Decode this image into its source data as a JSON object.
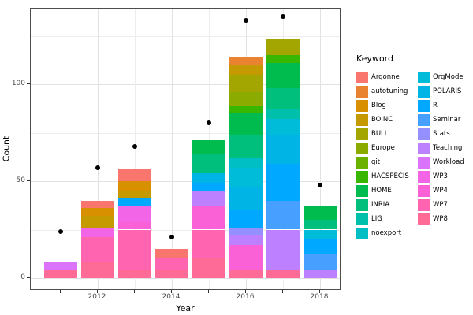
{
  "chart_data": {
    "type": "bar",
    "subtype": "stacked-bar-with-points",
    "title": "",
    "xlabel": "Year",
    "ylabel": "Count",
    "x_ticks_labeled": [
      2012,
      2014,
      2016,
      2018
    ],
    "x_ticks_all": [
      2011,
      2012,
      2013,
      2014,
      2015,
      2016,
      2017,
      2018
    ],
    "y_ticks": [
      0,
      50,
      100
    ],
    "y_minor_gridlines": [
      25,
      75,
      125
    ],
    "ylim": [
      0,
      139
    ],
    "grid": true,
    "legend_position": "right",
    "legend_title": "Keyword",
    "keywords": [
      {
        "name": "Argonne",
        "color": "#F8766D"
      },
      {
        "name": "autotuning",
        "color": "#EA8331"
      },
      {
        "name": "Blog",
        "color": "#D89000"
      },
      {
        "name": "BOINC",
        "color": "#C49A00"
      },
      {
        "name": "BULL",
        "color": "#A3A500"
      },
      {
        "name": "Europe",
        "color": "#8CAB00"
      },
      {
        "name": "git",
        "color": "#6BB100"
      },
      {
        "name": "HACSPECIS",
        "color": "#39B600"
      },
      {
        "name": "HOME",
        "color": "#00BB4E"
      },
      {
        "name": "INRIA",
        "color": "#00BF7D"
      },
      {
        "name": "LIG",
        "color": "#00C0AC"
      },
      {
        "name": "noexport",
        "color": "#00BFC4"
      },
      {
        "name": "OrgMode",
        "color": "#00BCD8"
      },
      {
        "name": "POLARIS",
        "color": "#00B4E6"
      },
      {
        "name": "R",
        "color": "#00A9FF"
      },
      {
        "name": "Seminar",
        "color": "#479FFF"
      },
      {
        "name": "Stats",
        "color": "#9590FF"
      },
      {
        "name": "Teaching",
        "color": "#BD80FF"
      },
      {
        "name": "Workload",
        "color": "#D974FB"
      },
      {
        "name": "WP3",
        "color": "#F265E6"
      },
      {
        "name": "WP4",
        "color": "#FB61D7"
      },
      {
        "name": "WP7",
        "color": "#FF64B0"
      },
      {
        "name": "WP8",
        "color": "#FF6B97"
      }
    ],
    "legend_columns": [
      12,
      11
    ],
    "bars": [
      {
        "year": 2011,
        "total": 8,
        "segments_top_to_bottom": [
          {
            "keyword": "Workload",
            "value": 4
          },
          {
            "keyword": "WP8",
            "value": 4
          }
        ]
      },
      {
        "year": 2012,
        "total": 40,
        "segments_top_to_bottom": [
          {
            "keyword": "Argonne",
            "value": 4
          },
          {
            "keyword": "Blog",
            "value": 4
          },
          {
            "keyword": "BOINC",
            "value": 6
          },
          {
            "keyword": "WP3",
            "value": 5
          },
          {
            "keyword": "WP7",
            "value": 13
          },
          {
            "keyword": "WP8",
            "value": 8
          }
        ]
      },
      {
        "year": 2013,
        "total": 56,
        "segments_top_to_bottom": [
          {
            "keyword": "Argonne",
            "value": 6
          },
          {
            "keyword": "Blog",
            "value": 5
          },
          {
            "keyword": "BOINC",
            "value": 4
          },
          {
            "keyword": "R",
            "value": 4
          },
          {
            "keyword": "WP3",
            "value": 8
          },
          {
            "keyword": "WP4",
            "value": 4
          },
          {
            "keyword": "WP7",
            "value": 21
          },
          {
            "keyword": "WP8",
            "value": 4
          }
        ]
      },
      {
        "year": 2014,
        "total": 15,
        "segments_top_to_bottom": [
          {
            "keyword": "Argonne",
            "value": 5
          },
          {
            "keyword": "WP7",
            "value": 6
          },
          {
            "keyword": "WP8",
            "value": 4
          }
        ]
      },
      {
        "year": 2015,
        "total": 71,
        "segments_top_to_bottom": [
          {
            "keyword": "HOME",
            "value": 7
          },
          {
            "keyword": "INRIA",
            "value": 10
          },
          {
            "keyword": "POLARIS",
            "value": 5
          },
          {
            "keyword": "R",
            "value": 4
          },
          {
            "keyword": "Teaching",
            "value": 8
          },
          {
            "keyword": "WP4",
            "value": 12
          },
          {
            "keyword": "WP7",
            "value": 15
          },
          {
            "keyword": "WP8",
            "value": 10
          }
        ]
      },
      {
        "year": 2016,
        "total": 114,
        "segments_top_to_bottom": [
          {
            "keyword": "autotuning",
            "value": 4
          },
          {
            "keyword": "BOINC",
            "value": 5
          },
          {
            "keyword": "BULL",
            "value": 9
          },
          {
            "keyword": "Europe",
            "value": 7
          },
          {
            "keyword": "HACSPECIS",
            "value": 4
          },
          {
            "keyword": "HOME",
            "value": 11
          },
          {
            "keyword": "INRIA",
            "value": 12
          },
          {
            "keyword": "noexport",
            "value": 5
          },
          {
            "keyword": "OrgMode",
            "value": 10
          },
          {
            "keyword": "POLARIS",
            "value": 12
          },
          {
            "keyword": "R",
            "value": 9
          },
          {
            "keyword": "Stats",
            "value": 4
          },
          {
            "keyword": "Teaching",
            "value": 5
          },
          {
            "keyword": "WP4",
            "value": 13
          },
          {
            "keyword": "WP8",
            "value": 4
          }
        ]
      },
      {
        "year": 2017,
        "total": 123,
        "segments_top_to_bottom": [
          {
            "keyword": "BULL",
            "value": 8
          },
          {
            "keyword": "HACSPECIS",
            "value": 4
          },
          {
            "keyword": "HOME",
            "value": 13
          },
          {
            "keyword": "INRIA",
            "value": 11
          },
          {
            "keyword": "LIG",
            "value": 5
          },
          {
            "keyword": "OrgMode",
            "value": 8
          },
          {
            "keyword": "POLARIS",
            "value": 15
          },
          {
            "keyword": "R",
            "value": 19
          },
          {
            "keyword": "Seminar",
            "value": 15
          },
          {
            "keyword": "Teaching",
            "value": 21
          },
          {
            "keyword": "WP8",
            "value": 4
          }
        ]
      },
      {
        "year": 2018,
        "total": 37,
        "segments_top_to_bottom": [
          {
            "keyword": "HOME",
            "value": 7
          },
          {
            "keyword": "INRIA",
            "value": 5
          },
          {
            "keyword": "OrgMode",
            "value": 5
          },
          {
            "keyword": "R",
            "value": 8
          },
          {
            "keyword": "Seminar",
            "value": 8
          },
          {
            "keyword": "Teaching",
            "value": 4
          }
        ]
      }
    ],
    "points": [
      {
        "year": 2011,
        "count": 24
      },
      {
        "year": 2012,
        "count": 57
      },
      {
        "year": 2013,
        "count": 68
      },
      {
        "year": 2014,
        "count": 21
      },
      {
        "year": 2015,
        "count": 80
      },
      {
        "year": 2016,
        "count": 133
      },
      {
        "year": 2017,
        "count": 135
      },
      {
        "year": 2018,
        "count": 48
      }
    ]
  }
}
